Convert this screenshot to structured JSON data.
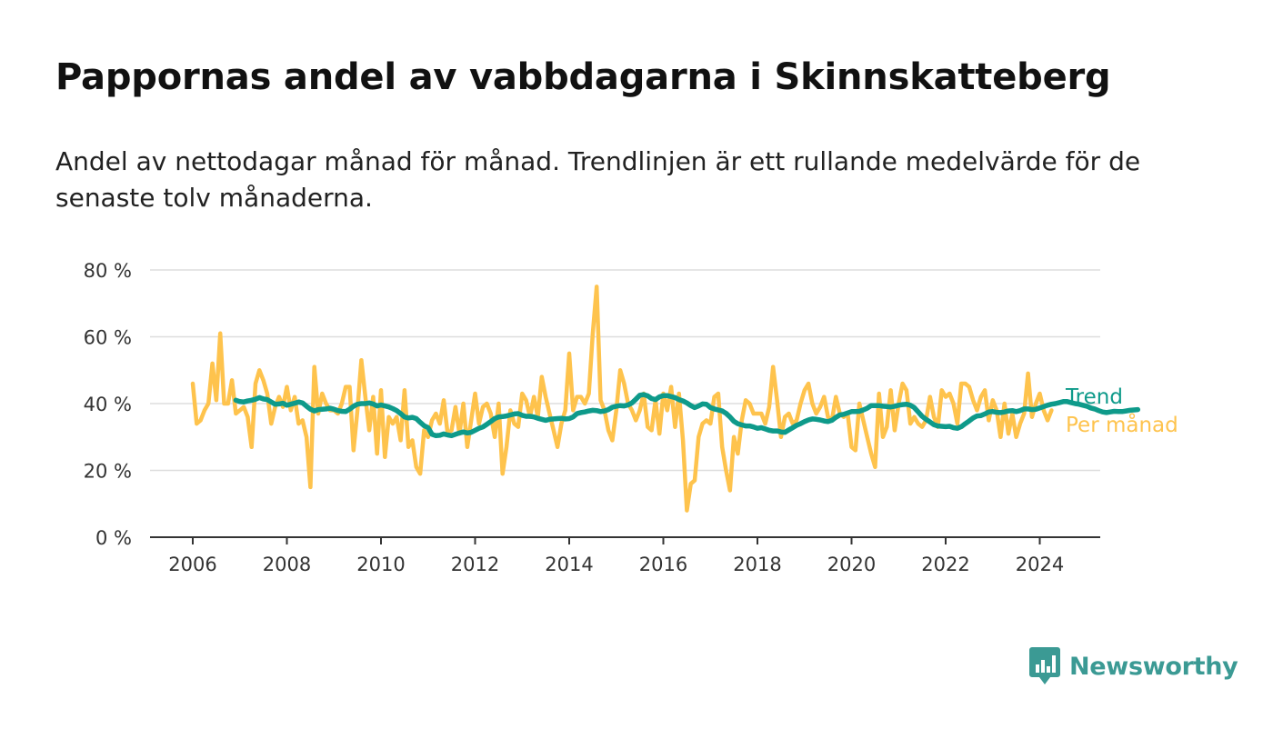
{
  "header": {
    "title": "Pappornas andel av vabbdagarna i Skinnskatteberg",
    "subtitle": "Andel av nettodagar månad för månad. Trendlinjen är ett rullande medelvärde för de senaste tolv månaderna."
  },
  "brand": {
    "logo_text": "Newsworthy",
    "logo_color": "#3b9a94"
  },
  "chart_data": {
    "type": "line",
    "title": "Pappornas andel av vabbdagarna i Skinnskatteberg",
    "xlabel": "",
    "ylabel": "",
    "x_start": "2006-01",
    "x_end": "2024-05",
    "x_ticks": [
      2006,
      2008,
      2010,
      2012,
      2014,
      2016,
      2018,
      2020,
      2022,
      2024
    ],
    "x_tick_labels": [
      "2006",
      "2008",
      "2010",
      "2012",
      "2014",
      "2016",
      "2018",
      "2020",
      "2022",
      "2024"
    ],
    "ylim": [
      0,
      80
    ],
    "y_ticks": [
      0,
      20,
      40,
      60,
      80
    ],
    "y_tick_labels": [
      "0 %",
      "20 %",
      "40 %",
      "60 %",
      "80 %"
    ],
    "grid": true,
    "legend_placement": "right-end",
    "series": [
      {
        "name": "Per månad",
        "color": "#fec34d",
        "start": "2006-01",
        "values": [
          46,
          34,
          35,
          38,
          40,
          52,
          41,
          61,
          40,
          40,
          47,
          37,
          38,
          39,
          36,
          27,
          46,
          50,
          47,
          43,
          34,
          39,
          42,
          39,
          45,
          38,
          42,
          34,
          35,
          30,
          15,
          51,
          37,
          43,
          40,
          38,
          38,
          37,
          40,
          45,
          45,
          26,
          38,
          53,
          42,
          32,
          42,
          25,
          44,
          24,
          36,
          34,
          36,
          29,
          44,
          27,
          29,
          21,
          19,
          32,
          30,
          35,
          37,
          34,
          41,
          31,
          32,
          39,
          31,
          40,
          27,
          35,
          43,
          34,
          39,
          40,
          37,
          30,
          40,
          19,
          27,
          38,
          34,
          33,
          43,
          41,
          36,
          42,
          36,
          48,
          42,
          37,
          32,
          27,
          34,
          38,
          55,
          38,
          42,
          42,
          40,
          43,
          61,
          75,
          41,
          38,
          32,
          29,
          38,
          50,
          46,
          40,
          38,
          35,
          38,
          43,
          33,
          32,
          41,
          31,
          43,
          38,
          45,
          33,
          43,
          29,
          8,
          16,
          17,
          30,
          34,
          35,
          34,
          42,
          43,
          27,
          20,
          14,
          30,
          25,
          35,
          41,
          40,
          37,
          37,
          37,
          34,
          39,
          51,
          41,
          30,
          36,
          37,
          34,
          35,
          40,
          44,
          46,
          40,
          37,
          39,
          42,
          36,
          35,
          42,
          37,
          36,
          37,
          27,
          26,
          40,
          35,
          30,
          25,
          21,
          43,
          30,
          33,
          44,
          32,
          40,
          46,
          44,
          34,
          36,
          34,
          33,
          35,
          42,
          36,
          33,
          44,
          42,
          43,
          40,
          34,
          46,
          46,
          45,
          41,
          38,
          42,
          44,
          35,
          41,
          38,
          30,
          40,
          31,
          37,
          30,
          34,
          37,
          49,
          36,
          40,
          43,
          38,
          35,
          38
        ]
      },
      {
        "name": "Trend",
        "color": "#0e9a8a",
        "start": "2006-12",
        "values": [
          41,
          40.6,
          40.5,
          40.8,
          41,
          41.3,
          41.8,
          41.4,
          41.2,
          40.5,
          39.8,
          39.9,
          40.1,
          39.5,
          39.8,
          40.1,
          40.5,
          40.2,
          39.2,
          38.3,
          37.8,
          38.2,
          38.3,
          38.4,
          38.6,
          38.3,
          37.9,
          37.7,
          37.6,
          38.3,
          39.2,
          39.8,
          40,
          40,
          40.2,
          39.9,
          39.3,
          39.6,
          39.3,
          39,
          38.5,
          37.9,
          37,
          36,
          35.7,
          35.9,
          35.5,
          34.4,
          33.4,
          32.8,
          30.8,
          30.4,
          30.5,
          30.9,
          30.6,
          30.4,
          30.8,
          31.2,
          31.5,
          31.2,
          31.4,
          32,
          32.6,
          33,
          33.8,
          34.6,
          35.5,
          36,
          36.1,
          36.3,
          36.6,
          36.9,
          37,
          36.5,
          36.2,
          36.2,
          36,
          35.6,
          35.3,
          35,
          35.3,
          35.4,
          35.5,
          35.6,
          35.4,
          35.5,
          36,
          37,
          37.3,
          37.5,
          37.8,
          38,
          37.9,
          37.6,
          37.8,
          38.2,
          38.9,
          39.2,
          39.4,
          39.3,
          39.6,
          40.2,
          41.3,
          42.5,
          42.7,
          42.3,
          41.5,
          41.2,
          42,
          42.4,
          42.4,
          42.1,
          41.8,
          41.2,
          40.8,
          40.2,
          39.4,
          38.8,
          39.3,
          39.9,
          39.8,
          38.8,
          38.4,
          38.1,
          37.8,
          37.1,
          36,
          34.7,
          34,
          33.6,
          33.3,
          33.3,
          33,
          32.6,
          32.8,
          32.4,
          32,
          31.8,
          31.8,
          31.5,
          31.4,
          32.1,
          32.8,
          33.5,
          34,
          34.6,
          35.1,
          35.4,
          35.3,
          35.1,
          34.8,
          34.6,
          35,
          35.9,
          36.6,
          36.8,
          37.2,
          37.6,
          37.6,
          37.7,
          38.1,
          38.6,
          39.4,
          39.4,
          39.4,
          39.2,
          39.1,
          39,
          39.2,
          39.5,
          39.7,
          39.8,
          39.5,
          38.8,
          37.5,
          36.2,
          35.3,
          34.5,
          33.7,
          33.3,
          33.2,
          33.1,
          33.2,
          32.8,
          32.6,
          33.1,
          34,
          34.8,
          35.7,
          36.3,
          36.4,
          36.9,
          37.5,
          37.6,
          37.4,
          37.3,
          37.5,
          37.8,
          37.9,
          37.6,
          37.9,
          38.4,
          38.4,
          38.2,
          38.3,
          38.7,
          39.1,
          39.5,
          39.8,
          40,
          40.3,
          40.6,
          40.6,
          40.3,
          40,
          39.8,
          39.5,
          39.2,
          38.7,
          38.4,
          37.9,
          37.5,
          37.3,
          37.5,
          37.7,
          37.6,
          37.6,
          37.8,
          38,
          38.1,
          38.2
        ]
      }
    ]
  }
}
